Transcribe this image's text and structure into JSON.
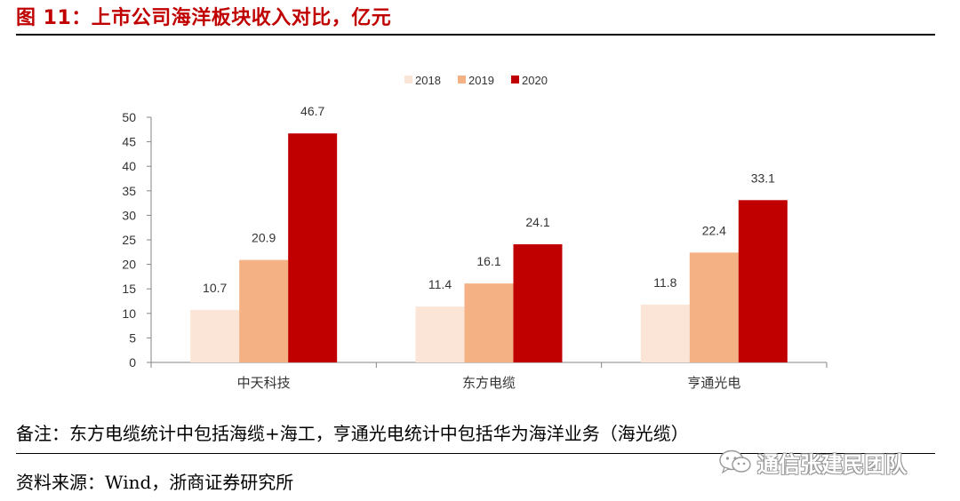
{
  "figure_title": "图 11：上市公司海洋板块收入对比，亿元",
  "note": "备注：东方电缆统计中包括海缆+海工，亨通光电统计中包括华为海洋业务（海光缆）",
  "source": "资料来源：Wind，浙商证券研究所",
  "watermark": "通信张建民团队",
  "colors": {
    "title": "#c00000",
    "s2018": "#fbe5d6",
    "s2019": "#f4b183",
    "s2020": "#c00000"
  },
  "chart_data": {
    "type": "bar",
    "categories": [
      "中天科技",
      "东方电缆",
      "亨通光电"
    ],
    "series": [
      {
        "name": "2018",
        "values": [
          10.7,
          11.4,
          11.8
        ]
      },
      {
        "name": "2019",
        "values": [
          20.9,
          16.1,
          22.4
        ]
      },
      {
        "name": "2020",
        "values": [
          46.7,
          24.1,
          33.1
        ]
      }
    ],
    "ylim": [
      0,
      50
    ],
    "yticks": [
      "0",
      "5",
      "10",
      "15",
      "20",
      "25",
      "30",
      "35",
      "40",
      "45",
      "50"
    ],
    "data_labels": true,
    "legend_position": "top",
    "grid": false
  }
}
